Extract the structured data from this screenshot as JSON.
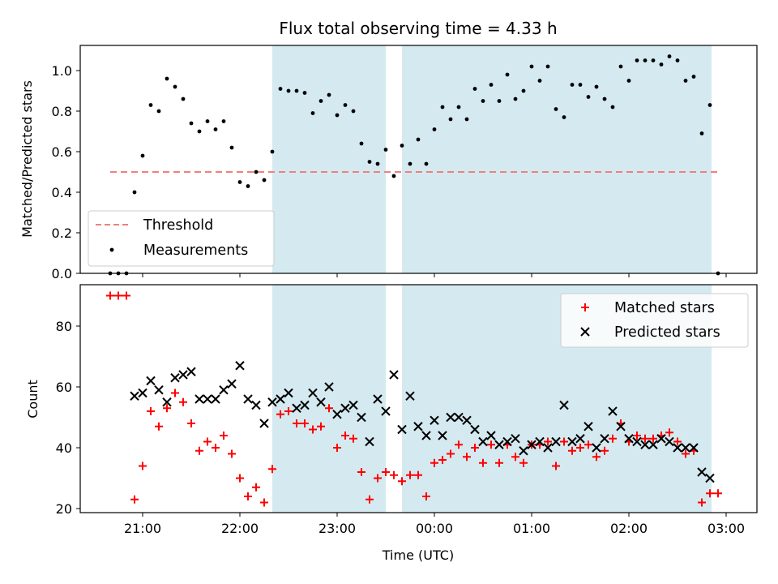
{
  "chart_data": [
    {
      "type": "scatter",
      "title": "Flux total observing time = 4.33 h",
      "xlabel": "",
      "ylabel": "Matched/Predicted stars",
      "x_ticks": [
        "21:00",
        "22:00",
        "23:00",
        "00:00",
        "01:00",
        "02:00",
        "03:00"
      ],
      "y_ticks": [
        "0.0",
        "0.2",
        "0.4",
        "0.6",
        "0.8",
        "1.0"
      ],
      "ylim": [
        0,
        1.12
      ],
      "shaded_intervals": [
        [
          "22:20",
          "23:30"
        ],
        [
          "23:40",
          "02:51"
        ]
      ],
      "shade_color": "#d4eaf0",
      "threshold": {
        "name": "Threshold",
        "value": 0.5,
        "x_range": [
          "20:40",
          "02:55"
        ],
        "color": "#f07f7f"
      },
      "series": [
        {
          "name": "Measurements",
          "color": "#000000",
          "points": [
            [
              "20:40",
              0.0
            ],
            [
              "20:45",
              0.0
            ],
            [
              "20:50",
              0.0
            ],
            [
              "20:55",
              0.4
            ],
            [
              "21:00",
              0.58
            ],
            [
              "21:05",
              0.83
            ],
            [
              "21:10",
              0.8
            ],
            [
              "21:15",
              0.96
            ],
            [
              "21:20",
              0.92
            ],
            [
              "21:25",
              0.86
            ],
            [
              "21:30",
              0.74
            ],
            [
              "21:35",
              0.7
            ],
            [
              "21:40",
              0.75
            ],
            [
              "21:45",
              0.71
            ],
            [
              "21:50",
              0.75
            ],
            [
              "21:55",
              0.62
            ],
            [
              "22:00",
              0.45
            ],
            [
              "22:05",
              0.43
            ],
            [
              "22:10",
              0.5
            ],
            [
              "22:15",
              0.46
            ],
            [
              "22:20",
              0.6
            ],
            [
              "22:25",
              0.91
            ],
            [
              "22:30",
              0.9
            ],
            [
              "22:35",
              0.9
            ],
            [
              "22:40",
              0.89
            ],
            [
              "22:45",
              0.79
            ],
            [
              "22:50",
              0.85
            ],
            [
              "22:55",
              0.88
            ],
            [
              "23:00",
              0.78
            ],
            [
              "23:05",
              0.83
            ],
            [
              "23:10",
              0.8
            ],
            [
              "23:15",
              0.64
            ],
            [
              "23:20",
              0.55
            ],
            [
              "23:25",
              0.54
            ],
            [
              "23:30",
              0.61
            ],
            [
              "23:35",
              0.48
            ],
            [
              "23:40",
              0.63
            ],
            [
              "23:45",
              0.54
            ],
            [
              "23:50",
              0.66
            ],
            [
              "23:55",
              0.54
            ],
            [
              "00:00",
              0.71
            ],
            [
              "00:05",
              0.82
            ],
            [
              "00:10",
              0.76
            ],
            [
              "00:15",
              0.82
            ],
            [
              "00:20",
              0.76
            ],
            [
              "00:25",
              0.91
            ],
            [
              "00:30",
              0.85
            ],
            [
              "00:35",
              0.93
            ],
            [
              "00:40",
              0.85
            ],
            [
              "00:45",
              0.98
            ],
            [
              "00:50",
              0.86
            ],
            [
              "00:55",
              0.9
            ],
            [
              "01:00",
              1.02
            ],
            [
              "01:05",
              0.95
            ],
            [
              "01:10",
              1.02
            ],
            [
              "01:15",
              0.81
            ],
            [
              "01:20",
              0.77
            ],
            [
              "01:25",
              0.93
            ],
            [
              "01:30",
              0.93
            ],
            [
              "01:35",
              0.87
            ],
            [
              "01:40",
              0.92
            ],
            [
              "01:45",
              0.86
            ],
            [
              "01:50",
              0.82
            ],
            [
              "01:55",
              1.02
            ],
            [
              "02:00",
              0.95
            ],
            [
              "02:05",
              1.05
            ],
            [
              "02:10",
              1.05
            ],
            [
              "02:15",
              1.05
            ],
            [
              "02:20",
              1.03
            ],
            [
              "02:25",
              1.07
            ],
            [
              "02:30",
              1.05
            ],
            [
              "02:35",
              0.95
            ],
            [
              "02:40",
              0.97
            ],
            [
              "02:45",
              0.69
            ],
            [
              "02:50",
              0.83
            ],
            [
              "02:55",
              0.0
            ]
          ]
        }
      ],
      "legend": {
        "placement": "lower-left",
        "entries": [
          "Threshold",
          "Measurements"
        ]
      }
    },
    {
      "type": "scatter",
      "title": "",
      "xlabel": "Time (UTC)",
      "ylabel": "Count",
      "x_ticks": [
        "21:00",
        "22:00",
        "23:00",
        "00:00",
        "01:00",
        "02:00",
        "03:00"
      ],
      "y_ticks": [
        "20",
        "40",
        "60",
        "80"
      ],
      "ylim": [
        18.5,
        93
      ],
      "shaded_intervals": [
        [
          "22:20",
          "23:30"
        ],
        [
          "23:40",
          "02:51"
        ]
      ],
      "shade_color": "#d4eaf0",
      "series": [
        {
          "name": "Matched stars",
          "color": "#ff0000",
          "marker": "plus",
          "points": [
            [
              "20:40",
              90
            ],
            [
              "20:45",
              90
            ],
            [
              "20:50",
              90
            ],
            [
              "20:55",
              23
            ],
            [
              "21:00",
              34
            ],
            [
              "21:05",
              52
            ],
            [
              "21:10",
              47
            ],
            [
              "21:15",
              53
            ],
            [
              "21:20",
              58
            ],
            [
              "21:25",
              55
            ],
            [
              "21:30",
              48
            ],
            [
              "21:35",
              39
            ],
            [
              "21:40",
              42
            ],
            [
              "21:45",
              40
            ],
            [
              "21:50",
              44
            ],
            [
              "21:55",
              38
            ],
            [
              "22:00",
              30
            ],
            [
              "22:05",
              24
            ],
            [
              "22:10",
              27
            ],
            [
              "22:15",
              22
            ],
            [
              "22:20",
              33
            ],
            [
              "22:25",
              51
            ],
            [
              "22:30",
              52
            ],
            [
              "22:35",
              48
            ],
            [
              "22:40",
              48
            ],
            [
              "22:45",
              46
            ],
            [
              "22:50",
              47
            ],
            [
              "22:55",
              53
            ],
            [
              "23:00",
              40
            ],
            [
              "23:05",
              44
            ],
            [
              "23:10",
              43
            ],
            [
              "23:15",
              32
            ],
            [
              "23:20",
              23
            ],
            [
              "23:25",
              30
            ],
            [
              "23:30",
              32
            ],
            [
              "23:35",
              31
            ],
            [
              "23:40",
              29
            ],
            [
              "23:45",
              31
            ],
            [
              "23:50",
              31
            ],
            [
              "23:55",
              24
            ],
            [
              "00:00",
              35
            ],
            [
              "00:05",
              36
            ],
            [
              "00:10",
              38
            ],
            [
              "00:15",
              41
            ],
            [
              "00:20",
              37
            ],
            [
              "00:25",
              40
            ],
            [
              "00:30",
              35
            ],
            [
              "00:35",
              41
            ],
            [
              "00:40",
              35
            ],
            [
              "00:45",
              41
            ],
            [
              "00:50",
              37
            ],
            [
              "00:55",
              35
            ],
            [
              "01:00",
              41
            ],
            [
              "01:05",
              41
            ],
            [
              "01:10",
              42
            ],
            [
              "01:15",
              34
            ],
            [
              "01:20",
              42
            ],
            [
              "01:25",
              39
            ],
            [
              "01:30",
              40
            ],
            [
              "01:35",
              41
            ],
            [
              "01:40",
              37
            ],
            [
              "01:45",
              39
            ],
            [
              "01:50",
              43
            ],
            [
              "01:55",
              48
            ],
            [
              "02:00",
              42
            ],
            [
              "02:05",
              44
            ],
            [
              "02:10",
              43
            ],
            [
              "02:15",
              43
            ],
            [
              "02:20",
              44
            ],
            [
              "02:25",
              45
            ],
            [
              "02:30",
              42
            ],
            [
              "02:35",
              38
            ],
            [
              "02:40",
              39
            ],
            [
              "02:45",
              22
            ],
            [
              "02:50",
              25
            ],
            [
              "02:55",
              25
            ]
          ]
        },
        {
          "name": "Predicted stars",
          "color": "#000000",
          "marker": "x",
          "points": [
            [
              "20:55",
              57
            ],
            [
              "21:00",
              58
            ],
            [
              "21:05",
              62
            ],
            [
              "21:10",
              59
            ],
            [
              "21:15",
              55
            ],
            [
              "21:20",
              63
            ],
            [
              "21:25",
              64
            ],
            [
              "21:30",
              65
            ],
            [
              "21:35",
              56
            ],
            [
              "21:40",
              56
            ],
            [
              "21:45",
              56
            ],
            [
              "21:50",
              59
            ],
            [
              "21:55",
              61
            ],
            [
              "22:00",
              67
            ],
            [
              "22:05",
              56
            ],
            [
              "22:10",
              54
            ],
            [
              "22:15",
              48
            ],
            [
              "22:20",
              55
            ],
            [
              "22:25",
              56
            ],
            [
              "22:30",
              58
            ],
            [
              "22:35",
              53
            ],
            [
              "22:40",
              54
            ],
            [
              "22:45",
              58
            ],
            [
              "22:50",
              55
            ],
            [
              "22:55",
              60
            ],
            [
              "23:00",
              51
            ],
            [
              "23:05",
              53
            ],
            [
              "23:10",
              54
            ],
            [
              "23:15",
              50
            ],
            [
              "23:20",
              42
            ],
            [
              "23:25",
              56
            ],
            [
              "23:30",
              52
            ],
            [
              "23:35",
              64
            ],
            [
              "23:40",
              46
            ],
            [
              "23:45",
              57
            ],
            [
              "23:50",
              47
            ],
            [
              "23:55",
              44
            ],
            [
              "00:00",
              49
            ],
            [
              "00:05",
              44
            ],
            [
              "00:10",
              50
            ],
            [
              "00:15",
              50
            ],
            [
              "00:20",
              49
            ],
            [
              "00:25",
              46
            ],
            [
              "00:30",
              42
            ],
            [
              "00:35",
              44
            ],
            [
              "00:40",
              41
            ],
            [
              "00:45",
              42
            ],
            [
              "00:50",
              43
            ],
            [
              "00:55",
              39
            ],
            [
              "01:00",
              41
            ],
            [
              "01:05",
              42
            ],
            [
              "01:10",
              40
            ],
            [
              "01:15",
              42
            ],
            [
              "01:20",
              54
            ],
            [
              "01:25",
              42
            ],
            [
              "01:30",
              43
            ],
            [
              "01:35",
              47
            ],
            [
              "01:40",
              40
            ],
            [
              "01:45",
              43
            ],
            [
              "01:50",
              52
            ],
            [
              "01:55",
              47
            ],
            [
              "02:00",
              43
            ],
            [
              "02:05",
              42
            ],
            [
              "02:10",
              41
            ],
            [
              "02:15",
              41
            ],
            [
              "02:20",
              43
            ],
            [
              "02:25",
              42
            ],
            [
              "02:30",
              40
            ],
            [
              "02:35",
              40
            ],
            [
              "02:40",
              40
            ],
            [
              "02:45",
              32
            ],
            [
              "02:50",
              30
            ]
          ]
        }
      ],
      "legend": {
        "placement": "upper-right",
        "entries": [
          "Matched stars",
          "Predicted stars"
        ]
      }
    }
  ]
}
